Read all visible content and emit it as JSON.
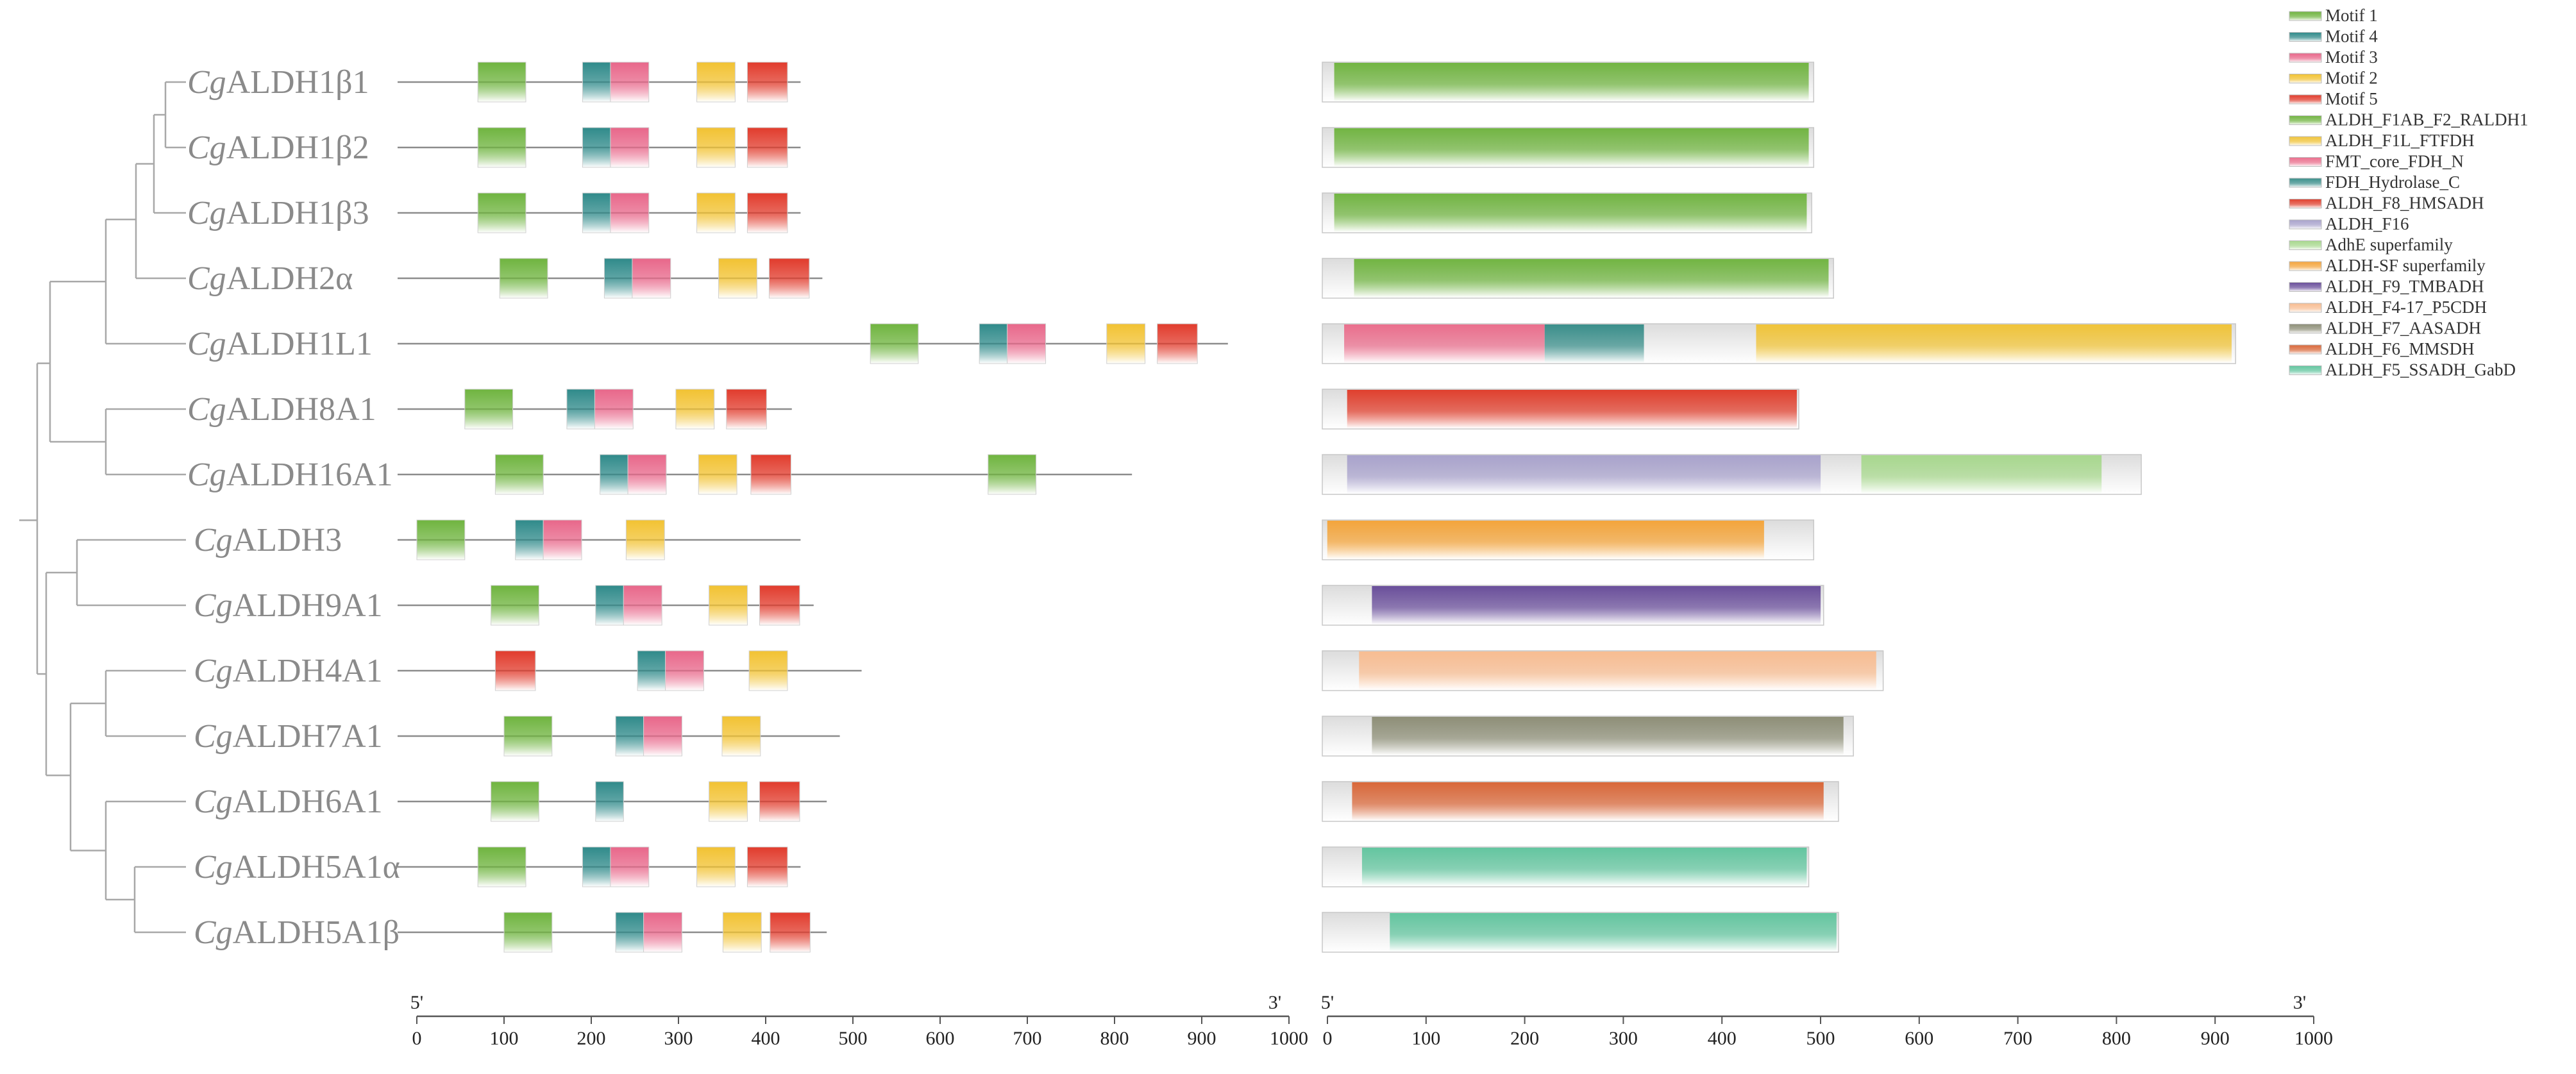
{
  "chart_data": {
    "type": "gene-structure",
    "genes": [
      {
        "prefix": "Cg",
        "name": "ALDH1β1",
        "length": 440,
        "motifs": [
          {
            "m": 1,
            "s": 70,
            "e": 125
          },
          {
            "m": 4,
            "s": 190,
            "e": 222
          },
          {
            "m": 3,
            "s": 222,
            "e": 266
          },
          {
            "m": 2,
            "s": 321,
            "e": 365
          },
          {
            "m": 5,
            "s": 379,
            "e": 425
          }
        ],
        "protein": 495,
        "domains": [
          {
            "t": "ALDH_F1AB_F2_RALDH1",
            "s": 12,
            "e": 490
          }
        ]
      },
      {
        "prefix": "Cg",
        "name": "ALDH1β2",
        "length": 440,
        "motifs": [
          {
            "m": 1,
            "s": 70,
            "e": 125
          },
          {
            "m": 4,
            "s": 190,
            "e": 222
          },
          {
            "m": 3,
            "s": 222,
            "e": 266
          },
          {
            "m": 2,
            "s": 321,
            "e": 365
          },
          {
            "m": 5,
            "s": 379,
            "e": 425
          }
        ],
        "protein": 495,
        "domains": [
          {
            "t": "ALDH_F1AB_F2_RALDH1",
            "s": 12,
            "e": 490
          }
        ]
      },
      {
        "prefix": "Cg",
        "name": "ALDH1β3",
        "length": 440,
        "motifs": [
          {
            "m": 1,
            "s": 70,
            "e": 125
          },
          {
            "m": 4,
            "s": 190,
            "e": 222
          },
          {
            "m": 3,
            "s": 222,
            "e": 266
          },
          {
            "m": 2,
            "s": 321,
            "e": 365
          },
          {
            "m": 5,
            "s": 379,
            "e": 425
          }
        ],
        "protein": 493,
        "domains": [
          {
            "t": "ALDH_F1AB_F2_RALDH1",
            "s": 12,
            "e": 488
          }
        ]
      },
      {
        "prefix": "Cg",
        "name": "ALDH2α",
        "length": 465,
        "motifs": [
          {
            "m": 1,
            "s": 95,
            "e": 150
          },
          {
            "m": 4,
            "s": 215,
            "e": 247
          },
          {
            "m": 3,
            "s": 247,
            "e": 291
          },
          {
            "m": 2,
            "s": 346,
            "e": 390
          },
          {
            "m": 5,
            "s": 404,
            "e": 450
          }
        ],
        "protein": 515,
        "domains": [
          {
            "t": "ALDH_F1AB_F2_RALDH1",
            "s": 32,
            "e": 510
          }
        ]
      },
      {
        "prefix": "Cg",
        "name": "ALDH1L1",
        "length": 930,
        "motifs": [
          {
            "m": 1,
            "s": 520,
            "e": 575
          },
          {
            "m": 4,
            "s": 645,
            "e": 677
          },
          {
            "m": 3,
            "s": 677,
            "e": 721
          },
          {
            "m": 2,
            "s": 791,
            "e": 835
          },
          {
            "m": 5,
            "s": 849,
            "e": 895
          }
        ],
        "protein": 920,
        "domains": [
          {
            "t": "FMT_core_FDH_N",
            "s": 22,
            "e": 224
          },
          {
            "t": "FDH_Hydrolase_C",
            "s": 224,
            "e": 324
          },
          {
            "t": "ALDH_F1L_FTFDH",
            "s": 437,
            "e": 916
          }
        ]
      },
      {
        "prefix": "Cg",
        "name": "ALDH8A1",
        "length": 430,
        "motifs": [
          {
            "m": 1,
            "s": 55,
            "e": 110
          },
          {
            "m": 4,
            "s": 172,
            "e": 204
          },
          {
            "m": 3,
            "s": 204,
            "e": 248
          },
          {
            "m": 2,
            "s": 297,
            "e": 341
          },
          {
            "m": 5,
            "s": 355,
            "e": 401
          }
        ],
        "protein": 480,
        "domains": [
          {
            "t": "ALDH_F8_HMSADH",
            "s": 25,
            "e": 478
          }
        ]
      },
      {
        "prefix": "Cg",
        "name": "ALDH16A1",
        "length": 820,
        "motifs": [
          {
            "m": 1,
            "s": 90,
            "e": 145
          },
          {
            "m": 4,
            "s": 210,
            "e": 242
          },
          {
            "m": 3,
            "s": 242,
            "e": 286
          },
          {
            "m": 2,
            "s": 323,
            "e": 367
          },
          {
            "m": 5,
            "s": 383,
            "e": 429
          },
          {
            "m": 1,
            "s": 655,
            "e": 710
          }
        ],
        "protein": 825,
        "domains": [
          {
            "t": "ALDH_F16",
            "s": 25,
            "e": 502
          },
          {
            "t": "AdhE superfamily",
            "s": 543,
            "e": 785
          }
        ]
      },
      {
        "prefix": "Cg",
        "name": "ALDH3",
        "length": 440,
        "motifs": [
          {
            "m": 1,
            "s": 0,
            "e": 55
          },
          {
            "m": 4,
            "s": 113,
            "e": 145
          },
          {
            "m": 3,
            "s": 145,
            "e": 189
          },
          {
            "m": 2,
            "s": 240,
            "e": 284
          }
        ],
        "protein": 495,
        "domains": [
          {
            "t": "ALDH-SF superfamily",
            "s": 5,
            "e": 445
          }
        ]
      },
      {
        "prefix": "Cg",
        "name": "ALDH9A1",
        "length": 455,
        "motifs": [
          {
            "m": 1,
            "s": 85,
            "e": 140
          },
          {
            "m": 4,
            "s": 205,
            "e": 237
          },
          {
            "m": 3,
            "s": 237,
            "e": 281
          },
          {
            "m": 2,
            "s": 335,
            "e": 379
          },
          {
            "m": 5,
            "s": 393,
            "e": 439
          }
        ],
        "protein": 505,
        "domains": [
          {
            "t": "ALDH_F9_TMBADH",
            "s": 50,
            "e": 502
          }
        ]
      },
      {
        "prefix": "Cg",
        "name": "ALDH4A1",
        "length": 510,
        "motifs": [
          {
            "m": 5,
            "s": 90,
            "e": 136
          },
          {
            "m": 4,
            "s": 253,
            "e": 285
          },
          {
            "m": 3,
            "s": 285,
            "e": 329
          },
          {
            "m": 2,
            "s": 381,
            "e": 425
          }
        ],
        "protein": 565,
        "domains": [
          {
            "t": "ALDH_F4-17_P5CDH",
            "s": 37,
            "e": 558
          }
        ]
      },
      {
        "prefix": "Cg",
        "name": "ALDH7A1",
        "length": 485,
        "motifs": [
          {
            "m": 1,
            "s": 100,
            "e": 155
          },
          {
            "m": 4,
            "s": 228,
            "e": 260
          },
          {
            "m": 3,
            "s": 260,
            "e": 304
          },
          {
            "m": 2,
            "s": 350,
            "e": 394
          }
        ],
        "protein": 535,
        "domains": [
          {
            "t": "ALDH_F7_AASADH",
            "s": 50,
            "e": 525
          }
        ]
      },
      {
        "prefix": "Cg",
        "name": "ALDH6A1",
        "length": 470,
        "motifs": [
          {
            "m": 1,
            "s": 85,
            "e": 140
          },
          {
            "m": 4,
            "s": 205,
            "e": 237
          },
          {
            "m": 2,
            "s": 335,
            "e": 379
          },
          {
            "m": 5,
            "s": 393,
            "e": 439
          }
        ],
        "protein": 520,
        "domains": [
          {
            "t": "ALDH_F6_MMSDH",
            "s": 30,
            "e": 505
          }
        ]
      },
      {
        "prefix": "Cg",
        "name": "ALDH5A1α",
        "length": 440,
        "motifs": [
          {
            "m": 1,
            "s": 70,
            "e": 125
          },
          {
            "m": 4,
            "s": 190,
            "e": 222
          },
          {
            "m": 3,
            "s": 222,
            "e": 266
          },
          {
            "m": 2,
            "s": 321,
            "e": 365
          },
          {
            "m": 5,
            "s": 379,
            "e": 425
          }
        ],
        "protein": 490,
        "domains": [
          {
            "t": "ALDH_F5_SSADH_GabD",
            "s": 40,
            "e": 488
          }
        ]
      },
      {
        "prefix": "Cg",
        "name": "ALDH5A1β",
        "length": 470,
        "motifs": [
          {
            "m": 1,
            "s": 100,
            "e": 155
          },
          {
            "m": 4,
            "s": 228,
            "e": 260
          },
          {
            "m": 3,
            "s": 260,
            "e": 304
          },
          {
            "m": 2,
            "s": 351,
            "e": 395
          },
          {
            "m": 5,
            "s": 405,
            "e": 451
          }
        ],
        "protein": 520,
        "domains": [
          {
            "t": "ALDH_F5_SSADH_GabD",
            "s": 68,
            "e": 518
          }
        ]
      }
    ],
    "axes": {
      "left": {
        "start": "5'",
        "end": "3'",
        "ticks": [
          0,
          100,
          200,
          300,
          400,
          500,
          600,
          700,
          800,
          900,
          1000
        ]
      },
      "right": {
        "start": "5'",
        "end": "3'",
        "ticks": [
          0,
          100,
          200,
          300,
          400,
          500,
          600,
          700,
          800,
          900,
          1000
        ]
      }
    },
    "legend": [
      {
        "label": "Motif 1",
        "color": "#6fb43f"
      },
      {
        "label": "Motif 4",
        "color": "#2f8a8a"
      },
      {
        "label": "Motif 3",
        "color": "#e8678a"
      },
      {
        "label": "Motif 2",
        "color": "#f2c232"
      },
      {
        "label": "Motif 5",
        "color": "#e13b2c"
      },
      {
        "label": "ALDH_F1AB_F2_RALDH1",
        "color": "#72b543"
      },
      {
        "label": "ALDH_F1L_FTFDH",
        "color": "#f0c43a"
      },
      {
        "label": "FMT_core_FDH_N",
        "color": "#ea6f8d"
      },
      {
        "label": "FDH_Hydrolase_C",
        "color": "#3b8f8b"
      },
      {
        "label": "ALDH_F8_HMSADH",
        "color": "#e0402e"
      },
      {
        "label": "ALDH_F16",
        "color": "#a9a3cc"
      },
      {
        "label": "AdhE superfamily",
        "color": "#a8d88e"
      },
      {
        "label": "ALDH-SF superfamily",
        "color": "#f4a53c"
      },
      {
        "label": "ALDH_F9_TMBADH",
        "color": "#6a4f9b"
      },
      {
        "label": "ALDH_F4-17_P5CDH",
        "color": "#f8bd92"
      },
      {
        "label": "ALDH_F7_AASADH",
        "color": "#8e8f78"
      },
      {
        "label": "ALDH_F6_MMSDH",
        "color": "#d9683a"
      },
      {
        "label": "ALDH_F5_SSADH_GabD",
        "color": "#64c6a0"
      }
    ]
  }
}
